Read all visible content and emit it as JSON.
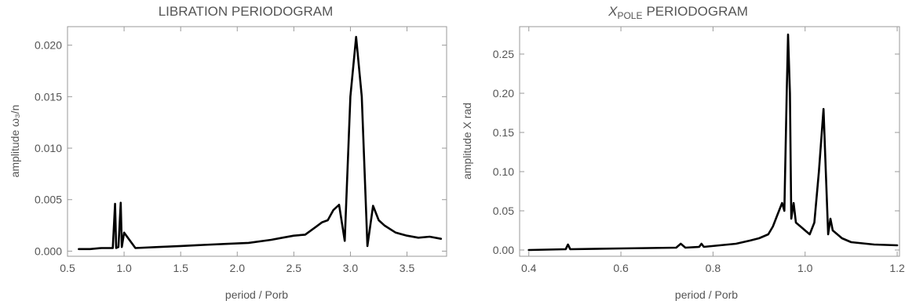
{
  "chart_data": [
    {
      "type": "line",
      "title": "LIBRATION PERIODOGRAM",
      "title_italic_part": "",
      "title_subscript": "",
      "xlabel": "period / Porb",
      "ylabel": "amplitude ω₃/n",
      "xlim": [
        0.5,
        3.85
      ],
      "ylim": [
        -0.0005,
        0.0218
      ],
      "xticks": [
        0.5,
        1.0,
        1.5,
        2.0,
        2.5,
        3.0,
        3.5
      ],
      "xtick_labels": [
        "0.5",
        "1.0",
        "1.5",
        "2.0",
        "2.5",
        "3.0",
        "3.5"
      ],
      "yticks": [
        0.0,
        0.005,
        0.01,
        0.015,
        0.02
      ],
      "ytick_labels": [
        "0.000",
        "0.005",
        "0.010",
        "0.015",
        "0.020"
      ],
      "grid": false,
      "series": [
        {
          "x": [
            0.6,
            0.7,
            0.8,
            0.9,
            0.92,
            0.93,
            0.95,
            0.97,
            0.98,
            1.0,
            1.1,
            1.3,
            1.5,
            1.7,
            1.9,
            2.1,
            2.3,
            2.4,
            2.5,
            2.6,
            2.65,
            2.7,
            2.75,
            2.8,
            2.85,
            2.9,
            2.95,
            3.0,
            3.05,
            3.1,
            3.15,
            3.2,
            3.25,
            3.3,
            3.4,
            3.5,
            3.6,
            3.7,
            3.8
          ],
          "y": [
            0.0002,
            0.0002,
            0.0003,
            0.0003,
            0.0046,
            0.0003,
            0.0004,
            0.0047,
            0.0004,
            0.0018,
            0.0003,
            0.0004,
            0.0005,
            0.0006,
            0.0007,
            0.0008,
            0.0011,
            0.0013,
            0.0015,
            0.0016,
            0.002,
            0.0024,
            0.0028,
            0.003,
            0.004,
            0.0045,
            0.001,
            0.015,
            0.0208,
            0.015,
            0.0005,
            0.0044,
            0.003,
            0.0025,
            0.0018,
            0.0015,
            0.0013,
            0.0014,
            0.0012
          ]
        }
      ]
    },
    {
      "type": "line",
      "title": "PERIODOGRAM",
      "title_italic_part": "X",
      "title_subscript": "POLE",
      "xlabel": "period / Porb",
      "ylabel": "amplitude X rad",
      "xlim": [
        0.38,
        1.205
      ],
      "ylim": [
        -0.008,
        0.285
      ],
      "xticks": [
        0.4,
        0.6,
        0.8,
        1.0,
        1.2
      ],
      "xtick_labels": [
        "0.4",
        "0.6",
        "0.8",
        "1.0",
        "1.2"
      ],
      "yticks": [
        0.0,
        0.05,
        0.1,
        0.15,
        0.2,
        0.25
      ],
      "ytick_labels": [
        "0.00",
        "0.05",
        "0.10",
        "0.15",
        "0.20",
        "0.25"
      ],
      "grid": false,
      "series": [
        {
          "x": [
            0.4,
            0.48,
            0.485,
            0.49,
            0.6,
            0.72,
            0.73,
            0.74,
            0.77,
            0.775,
            0.78,
            0.85,
            0.88,
            0.9,
            0.92,
            0.93,
            0.94,
            0.95,
            0.955,
            0.96,
            0.963,
            0.967,
            0.97,
            0.975,
            0.98,
            0.99,
            1.0,
            1.01,
            1.02,
            1.03,
            1.04,
            1.045,
            1.05,
            1.055,
            1.06,
            1.08,
            1.1,
            1.15,
            1.2
          ],
          "y": [
            0.0,
            0.001,
            0.007,
            0.001,
            0.002,
            0.003,
            0.008,
            0.003,
            0.004,
            0.008,
            0.004,
            0.008,
            0.012,
            0.015,
            0.02,
            0.03,
            0.045,
            0.06,
            0.05,
            0.2,
            0.275,
            0.2,
            0.04,
            0.06,
            0.035,
            0.03,
            0.025,
            0.02,
            0.035,
            0.1,
            0.18,
            0.1,
            0.02,
            0.04,
            0.025,
            0.015,
            0.01,
            0.007,
            0.006
          ]
        }
      ]
    }
  ]
}
